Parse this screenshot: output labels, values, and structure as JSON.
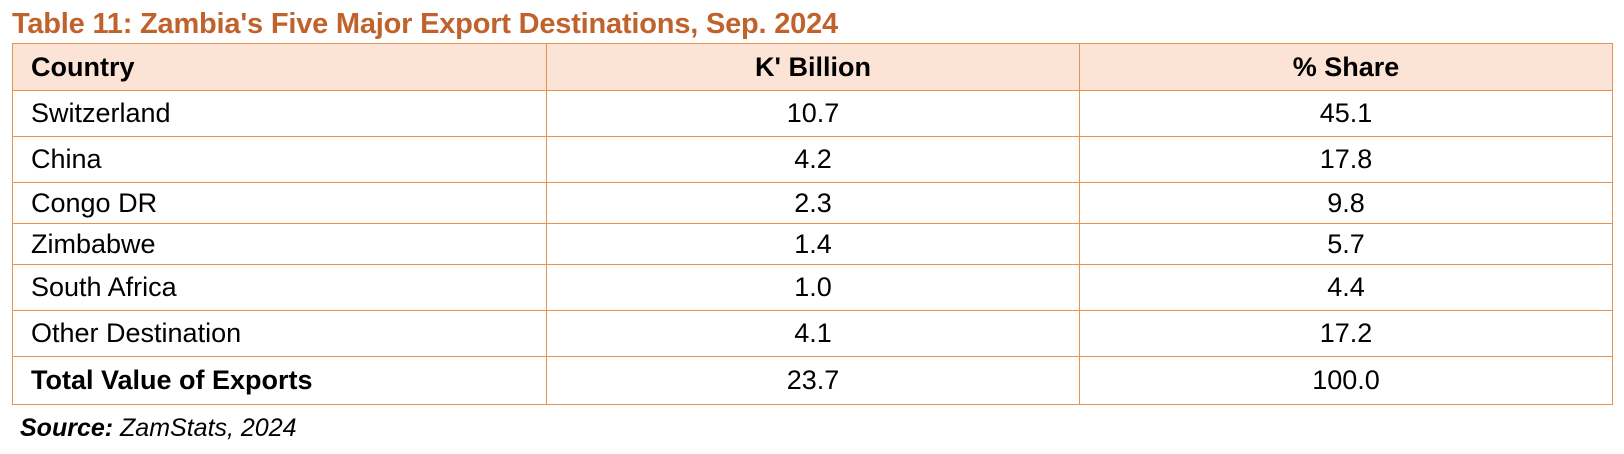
{
  "title": "Table 11: Zambia's Five Major Export Destinations, Sep. 2024",
  "table": {
    "headers": {
      "country": "Country",
      "value": "K' Billion",
      "share": "% Share"
    },
    "rows": [
      {
        "country": "Switzerland",
        "value": "10.7",
        "share": "45.1"
      },
      {
        "country": "China",
        "value": "4.2",
        "share": "17.8"
      },
      {
        "country": "Congo DR",
        "value": "2.3",
        "share": "9.8"
      },
      {
        "country": "Zimbabwe",
        "value": "1.4",
        "share": "5.7"
      },
      {
        "country": "South Africa",
        "value": "1.0",
        "share": "4.4"
      },
      {
        "country": "Other Destination",
        "value": "4.1",
        "share": "17.2"
      }
    ],
    "total": {
      "country": "Total Value of Exports",
      "value": "23.7",
      "share": "100.0"
    }
  },
  "source": {
    "label": "Source:",
    "text": " ZamStats, 2024"
  },
  "colors": {
    "title": "#C0622B",
    "header_bg": "#FBE4D5",
    "border": "#E8924F"
  }
}
